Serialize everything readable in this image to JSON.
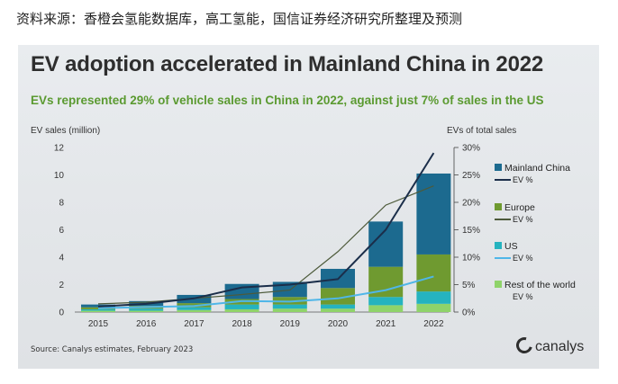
{
  "caption": "资料来源：香橙会氢能数据库，高工氢能，国信证券经济研究所整理及预测",
  "source": "Source: Canalys estimates, February 2023",
  "brand": "canalys",
  "colors": {
    "mainland_china": "#1c6a8f",
    "europe": "#6f9a30",
    "us": "#25b3bf",
    "rest_of_world": "#8fd36a",
    "china_line": "#1b2e4a",
    "europe_line": "#4d5a3a",
    "us_line": "#4fb6e8",
    "row_line": "#8fd14a"
  },
  "chart_data": {
    "type": "bar",
    "title": "EV adoption accelerated in Mainland China in 2022",
    "subtitle": "EVs represented 29% of vehicle sales in China in 2022, against just 7% of sales in the US",
    "ylabel": "EV sales (million)",
    "y2label": "EVs of total sales",
    "ylim": [
      0,
      12
    ],
    "y2lim": [
      0,
      30
    ],
    "yticks": [
      "0",
      "2",
      "4",
      "6",
      "8",
      "10",
      "12"
    ],
    "y2ticks": [
      "0%",
      "5%",
      "10%",
      "15%",
      "20%",
      "25%",
      "30%"
    ],
    "categories": [
      "2015",
      "2016",
      "2017",
      "2018",
      "2019",
      "2020",
      "2021",
      "2022"
    ],
    "stacked": true,
    "series": [
      {
        "name": "Rest of the world",
        "key": "rest_of_world",
        "values": [
          0.1,
          0.1,
          0.15,
          0.2,
          0.25,
          0.25,
          0.5,
          0.6
        ]
      },
      {
        "name": "US",
        "key": "us",
        "values": [
          0.1,
          0.15,
          0.2,
          0.35,
          0.3,
          0.3,
          0.6,
          0.9
        ]
      },
      {
        "name": "Europe",
        "key": "europe",
        "values": [
          0.15,
          0.2,
          0.3,
          0.4,
          0.55,
          1.2,
          2.2,
          2.7
        ]
      },
      {
        "name": "Mainland China",
        "key": "mainland_china",
        "values": [
          0.2,
          0.35,
          0.6,
          1.1,
          1.1,
          1.4,
          3.3,
          5.9
        ]
      }
    ],
    "lines": [
      {
        "key": "rest_of_world_line",
        "legend": "EV %",
        "values": [
          0.3,
          0.4,
          0.5,
          0.8,
          0.9,
          1.1,
          1.8,
          2.3
        ]
      },
      {
        "key": "us_line",
        "legend": "EV %",
        "values": [
          0.7,
          0.9,
          1.1,
          2.0,
          1.9,
          2.5,
          4.0,
          6.5
        ]
      },
      {
        "key": "europe_line",
        "legend": "EV %",
        "values": [
          1.5,
          1.8,
          2.5,
          3.2,
          4.0,
          11.0,
          19.5,
          23.0
        ]
      },
      {
        "key": "china_line",
        "legend": "EV %",
        "values": [
          1.0,
          1.5,
          2.5,
          4.5,
          5.0,
          6.0,
          15.0,
          29.0
        ]
      }
    ],
    "legend_position": "right",
    "grid": false
  }
}
